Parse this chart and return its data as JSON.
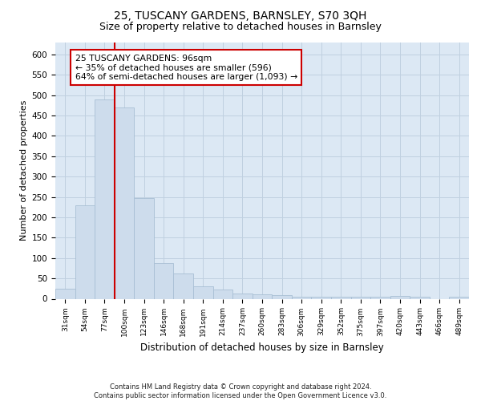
{
  "title1": "25, TUSCANY GARDENS, BARNSLEY, S70 3QH",
  "title2": "Size of property relative to detached houses in Barnsley",
  "xlabel": "Distribution of detached houses by size in Barnsley",
  "ylabel": "Number of detached properties",
  "footer": "Contains HM Land Registry data © Crown copyright and database right 2024.\nContains public sector information licensed under the Open Government Licence v3.0.",
  "bar_labels": [
    "31sqm",
    "54sqm",
    "77sqm",
    "100sqm",
    "123sqm",
    "146sqm",
    "168sqm",
    "191sqm",
    "214sqm",
    "237sqm",
    "260sqm",
    "283sqm",
    "306sqm",
    "329sqm",
    "352sqm",
    "375sqm",
    "397sqm",
    "420sqm",
    "443sqm",
    "466sqm",
    "489sqm"
  ],
  "bar_values": [
    25,
    230,
    490,
    470,
    248,
    88,
    62,
    30,
    22,
    12,
    10,
    8,
    4,
    4,
    4,
    4,
    4,
    6,
    4,
    0,
    4
  ],
  "bar_color": "#cddcec",
  "bar_edge_color": "#a8bfd4",
  "vline_x_index": 2.5,
  "vline_color": "#cc0000",
  "annotation_text": "25 TUSCANY GARDENS: 96sqm\n← 35% of detached houses are smaller (596)\n64% of semi-detached houses are larger (1,093) →",
  "annotation_box_color": "#ffffff",
  "annotation_box_edge": "#cc0000",
  "ylim": [
    0,
    630
  ],
  "yticks": [
    0,
    50,
    100,
    150,
    200,
    250,
    300,
    350,
    400,
    450,
    500,
    550,
    600
  ],
  "grid_color": "#c0d0e0",
  "bg_color": "#dce8f4",
  "title1_fontsize": 10,
  "title2_fontsize": 9
}
